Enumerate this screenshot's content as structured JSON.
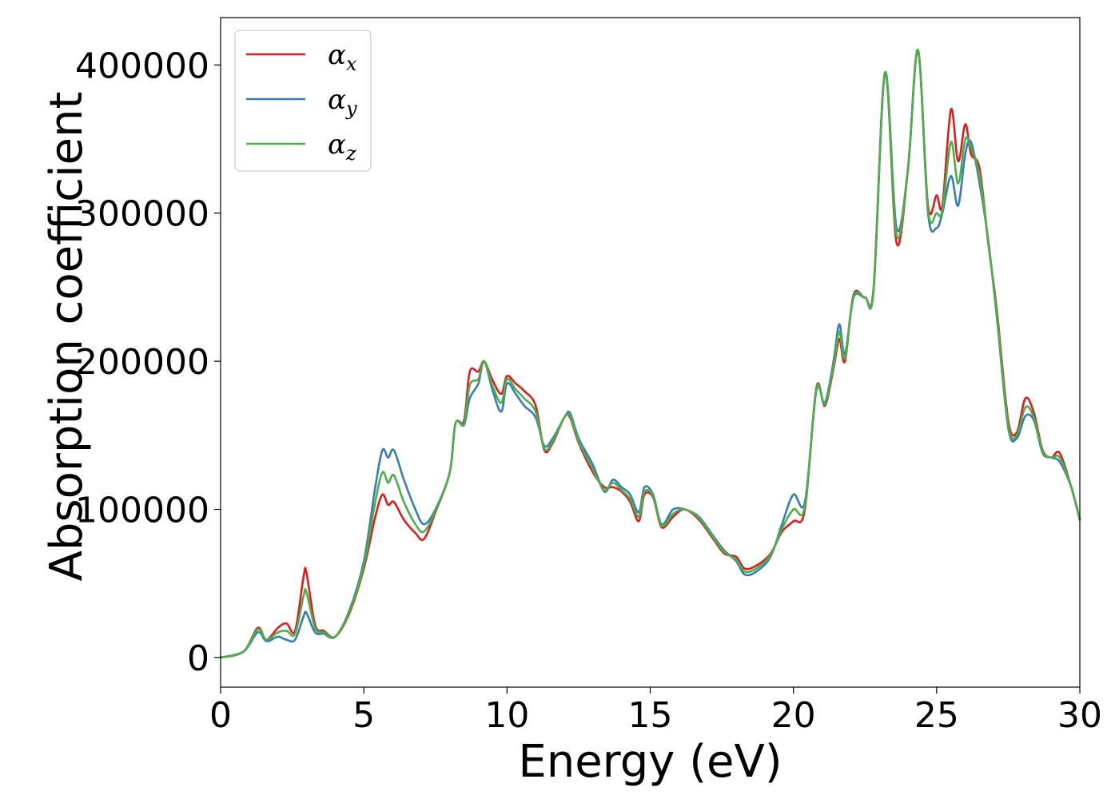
{
  "chart_data": {
    "type": "line",
    "title": "",
    "xlabel": "Energy (eV)",
    "ylabel": "Absorption coefficient",
    "xlim": [
      0,
      30
    ],
    "ylim": [
      -20000,
      432000
    ],
    "xticks": [
      0,
      5,
      10,
      15,
      20,
      25,
      30
    ],
    "xtick_labels": [
      "0",
      "5",
      "10",
      "15",
      "20",
      "25",
      "30"
    ],
    "yticks": [
      0,
      100000,
      200000,
      300000,
      400000
    ],
    "ytick_labels": [
      "0",
      "100000",
      "200000",
      "300000",
      "400000"
    ],
    "grid": false,
    "legend_position": "top-left",
    "x": [
      0,
      0.8,
      1.3,
      1.6,
      2.0,
      2.3,
      2.6,
      2.9,
      3.0,
      3.3,
      3.6,
      4.0,
      4.5,
      5.0,
      5.4,
      5.65,
      5.85,
      6.05,
      6.4,
      6.8,
      7.1,
      7.5,
      8.0,
      8.2,
      8.5,
      8.7,
      9.0,
      9.2,
      9.5,
      9.8,
      10.0,
      10.3,
      10.6,
      11.0,
      11.3,
      11.6,
      12.0,
      12.2,
      12.5,
      13.0,
      13.4,
      13.7,
      14.0,
      14.3,
      14.6,
      14.8,
      15.1,
      15.4,
      15.8,
      16.2,
      16.7,
      17.2,
      17.6,
      18.0,
      18.3,
      18.7,
      19.2,
      19.6,
      20.0,
      20.4,
      20.8,
      21.1,
      21.4,
      21.6,
      21.8,
      22.1,
      22.5,
      22.8,
      23.2,
      23.6,
      24.0,
      24.35,
      24.7,
      25.0,
      25.2,
      25.5,
      25.75,
      26.0,
      26.2,
      26.5,
      26.8,
      27.1,
      27.5,
      27.8,
      28.1,
      28.4,
      28.7,
      29.0,
      29.3,
      29.7,
      30.0
    ],
    "series": [
      {
        "name": "α_x",
        "color": "#e41a1c",
        "values": [
          0,
          4000,
          20000,
          12000,
          20000,
          23000,
          18000,
          55000,
          57000,
          22000,
          18000,
          14000,
          30000,
          60000,
          95000,
          110000,
          103000,
          105000,
          93000,
          84000,
          80000,
          98000,
          125000,
          158000,
          160000,
          193000,
          193000,
          200000,
          187000,
          178000,
          190000,
          185000,
          180000,
          170000,
          140000,
          145000,
          162000,
          162000,
          145000,
          125000,
          115000,
          115000,
          112000,
          105000,
          92000,
          110000,
          108000,
          88000,
          95000,
          100000,
          93000,
          80000,
          70000,
          68000,
          60000,
          62000,
          70000,
          85000,
          92000,
          100000,
          182000,
          170000,
          195000,
          215000,
          200000,
          245000,
          243000,
          250000,
          395000,
          280000,
          330000,
          410000,
          305000,
          312000,
          305000,
          370000,
          335000,
          360000,
          340000,
          330000,
          280000,
          235000,
          160000,
          152000,
          175000,
          165000,
          140000,
          135000,
          138000,
          115000,
          93000
        ]
      },
      {
        "name": "α_y",
        "color": "#377eb8",
        "values": [
          0,
          4000,
          17000,
          11000,
          14000,
          12000,
          12000,
          28000,
          30000,
          17000,
          16000,
          14000,
          32000,
          65000,
          115000,
          140000,
          135000,
          140000,
          120000,
          100000,
          90000,
          100000,
          125000,
          158000,
          157000,
          175000,
          185000,
          200000,
          180000,
          166000,
          185000,
          178000,
          170000,
          162000,
          143000,
          148000,
          162000,
          165000,
          148000,
          130000,
          112000,
          120000,
          115000,
          110000,
          98000,
          115000,
          110000,
          90000,
          100000,
          100000,
          95000,
          82000,
          72000,
          65000,
          56000,
          58000,
          68000,
          90000,
          110000,
          105000,
          180000,
          172000,
          200000,
          225000,
          205000,
          243000,
          243000,
          248000,
          395000,
          290000,
          330000,
          410000,
          300000,
          290000,
          300000,
          325000,
          305000,
          340000,
          348000,
          320000,
          282000,
          230000,
          155000,
          148000,
          163000,
          160000,
          138000,
          135000,
          132000,
          115000,
          93000
        ]
      },
      {
        "name": "α_z",
        "color": "#4daf4a",
        "values": [
          0,
          4000,
          19000,
          12000,
          17000,
          18000,
          16000,
          42000,
          44000,
          20000,
          17000,
          14000,
          31000,
          62000,
          105000,
          125000,
          118000,
          123000,
          105000,
          90000,
          85000,
          99000,
          125000,
          158000,
          158000,
          184000,
          188000,
          200000,
          183000,
          172000,
          188000,
          181000,
          175000,
          166000,
          141000,
          146000,
          162000,
          163000,
          146000,
          127000,
          113000,
          118000,
          113000,
          107000,
          95000,
          112000,
          109000,
          89000,
          97000,
          100000,
          94000,
          81000,
          71000,
          66000,
          58000,
          60000,
          69000,
          87000,
          100000,
          102000,
          181000,
          171000,
          197000,
          220000,
          202000,
          244000,
          243000,
          249000,
          395000,
          285000,
          330000,
          410000,
          302000,
          300000,
          302000,
          348000,
          320000,
          350000,
          344000,
          325000,
          281000,
          232000,
          157000,
          150000,
          169000,
          162000,
          139000,
          135000,
          135000,
          115000,
          93000
        ]
      }
    ]
  },
  "legend": {
    "items": [
      {
        "label": "α",
        "subscript": "x",
        "color": "#e41a1c"
      },
      {
        "label": "α",
        "subscript": "y",
        "color": "#377eb8"
      },
      {
        "label": "α",
        "subscript": "z",
        "color": "#4daf4a"
      }
    ]
  }
}
